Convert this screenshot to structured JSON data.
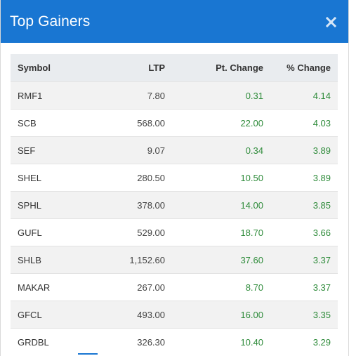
{
  "modal": {
    "title": "Top Gainers",
    "close_icon": "close-icon",
    "accent_color": "#1976d2",
    "positive_color": "#2e8b3a"
  },
  "table": {
    "headers": {
      "symbol": "Symbol",
      "ltp": "LTP",
      "pt_change": "Pt. Change",
      "pct_change": "% Change"
    },
    "rows": [
      {
        "symbol": "RMF1",
        "ltp": "7.80",
        "pt_change": "0.31",
        "pct_change": "4.14"
      },
      {
        "symbol": "SCB",
        "ltp": "568.00",
        "pt_change": "22.00",
        "pct_change": "4.03"
      },
      {
        "symbol": "SEF",
        "ltp": "9.07",
        "pt_change": "0.34",
        "pct_change": "3.89"
      },
      {
        "symbol": "SHEL",
        "ltp": "280.50",
        "pt_change": "10.50",
        "pct_change": "3.89"
      },
      {
        "symbol": "SPHL",
        "ltp": "378.00",
        "pt_change": "14.00",
        "pct_change": "3.85"
      },
      {
        "symbol": "GUFL",
        "ltp": "529.00",
        "pt_change": "18.70",
        "pct_change": "3.66"
      },
      {
        "symbol": "SHLB",
        "ltp": "1,152.60",
        "pt_change": "37.60",
        "pct_change": "3.37"
      },
      {
        "symbol": "MAKAR",
        "ltp": "267.00",
        "pt_change": "8.70",
        "pct_change": "3.37"
      },
      {
        "symbol": "GFCL",
        "ltp": "493.00",
        "pt_change": "16.00",
        "pct_change": "3.35"
      },
      {
        "symbol": "GRDBL",
        "ltp": "326.30",
        "pt_change": "10.40",
        "pct_change": "3.29"
      }
    ]
  }
}
